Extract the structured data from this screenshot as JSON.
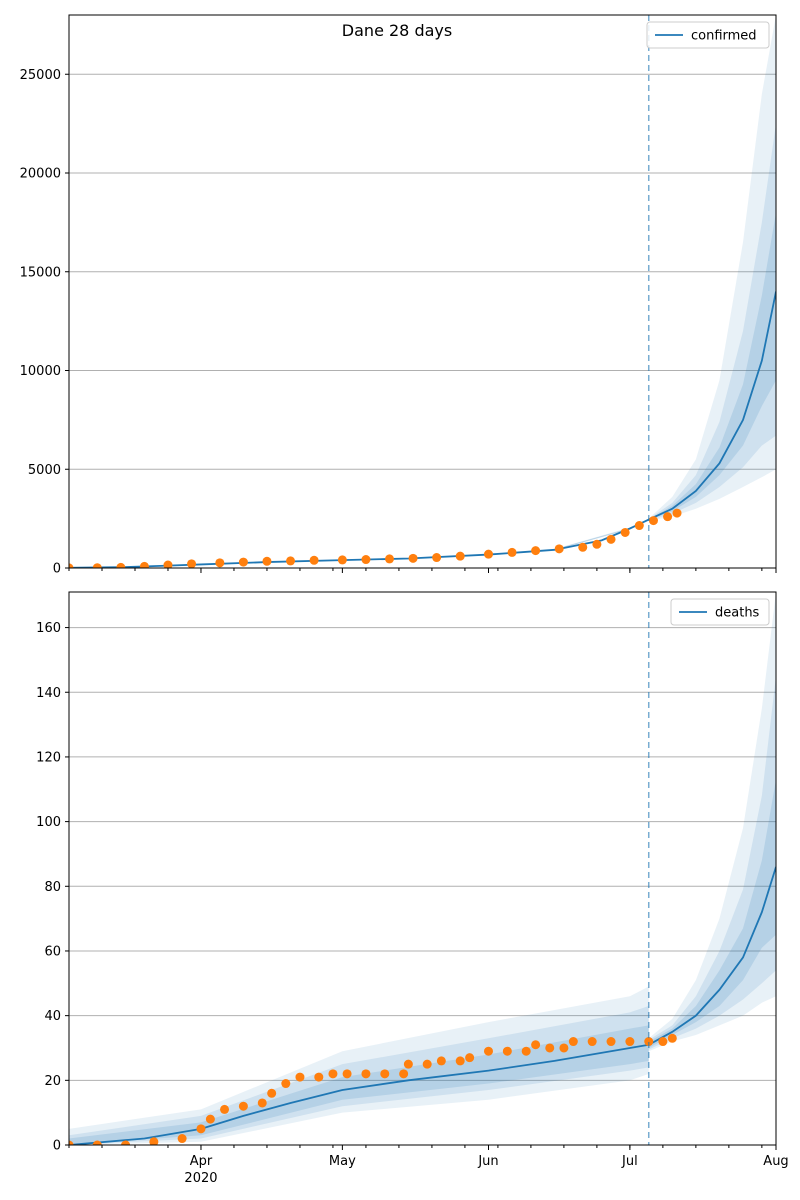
{
  "figure": {
    "title": "Dane 28 days"
  },
  "colors": {
    "model_line": "#1f77b4",
    "observed_points": "#ff7f0e",
    "band": "#1f77b4",
    "grid": "#b0b0b0",
    "axes": "#000000"
  },
  "chart_data": [
    {
      "type": "line",
      "name": "confirmed-panel",
      "title": "",
      "xlabel": "",
      "ylabel": "",
      "x_range": [
        "2020-03-04",
        "2020-08-01"
      ],
      "ylim": [
        0,
        28000
      ],
      "y_ticks": [
        0,
        5000,
        10000,
        15000,
        20000,
        25000
      ],
      "x_ticks": [
        {
          "date": "2020-04-01",
          "label": "Apr",
          "sub": "2020"
        },
        {
          "date": "2020-05-01",
          "label": "May",
          "sub": ""
        },
        {
          "date": "2020-06-01",
          "label": "Jun",
          "sub": ""
        },
        {
          "date": "2020-07-01",
          "label": "Jul",
          "sub": ""
        },
        {
          "date": "2020-08-01",
          "label": "Aug",
          "sub": ""
        }
      ],
      "grid": "horizontal",
      "legend": {
        "position": "top-right",
        "entries": [
          "confirmed"
        ]
      },
      "vline_date": "2020-07-05",
      "model": {
        "name": "confirmed",
        "points": [
          [
            "2020-03-04",
            10
          ],
          [
            "2020-03-15",
            40
          ],
          [
            "2020-03-25",
            120
          ],
          [
            "2020-04-01",
            180
          ],
          [
            "2020-04-15",
            300
          ],
          [
            "2020-05-01",
            400
          ],
          [
            "2020-05-15",
            480
          ],
          [
            "2020-06-01",
            680
          ],
          [
            "2020-06-15",
            920
          ],
          [
            "2020-06-25",
            1400
          ],
          [
            "2020-07-01",
            2000
          ],
          [
            "2020-07-05",
            2450
          ],
          [
            "2020-07-10",
            3000
          ],
          [
            "2020-07-15",
            3900
          ],
          [
            "2020-07-20",
            5300
          ],
          [
            "2020-07-25",
            7500
          ],
          [
            "2020-07-29",
            10500
          ],
          [
            "2020-08-01",
            14000
          ]
        ]
      },
      "bands": [
        {
          "opacity": 0.1,
          "points": [
            [
              "2020-06-15",
              880,
              960
            ],
            [
              "2020-07-01",
              1950,
              2050
            ],
            [
              "2020-07-05",
              2400,
              2500
            ],
            [
              "2020-07-10",
              2600,
              3600
            ],
            [
              "2020-07-15",
              3000,
              5500
            ],
            [
              "2020-07-20",
              3500,
              9500
            ],
            [
              "2020-07-25",
              4100,
              16500
            ],
            [
              "2020-07-29",
              4600,
              24000
            ],
            [
              "2020-08-01",
              5000,
              28000
            ]
          ]
        },
        {
          "opacity": 0.12,
          "points": [
            [
              "2020-06-15",
              890,
              950
            ],
            [
              "2020-07-01",
              1970,
              2030
            ],
            [
              "2020-07-05",
              2420,
              2480
            ],
            [
              "2020-07-10",
              2750,
              3300
            ],
            [
              "2020-07-15",
              3300,
              4700
            ],
            [
              "2020-07-20",
              4100,
              7400
            ],
            [
              "2020-07-25",
              5100,
              12000
            ],
            [
              "2020-07-29",
              6200,
              17500
            ],
            [
              "2020-08-01",
              6700,
              22500
            ]
          ]
        },
        {
          "opacity": 0.15,
          "points": [
            [
              "2020-06-15",
              900,
              940
            ],
            [
              "2020-07-01",
              1985,
              2015
            ],
            [
              "2020-07-05",
              2440,
              2460
            ],
            [
              "2020-07-10",
              2870,
              3150
            ],
            [
              "2020-07-15",
              3600,
              4250
            ],
            [
              "2020-07-20",
              4700,
              6100
            ],
            [
              "2020-07-25",
              6200,
              9300
            ],
            [
              "2020-07-29",
              8200,
              13800
            ],
            [
              "2020-08-01",
              9500,
              18000
            ]
          ]
        }
      ],
      "observed": {
        "name": "confirmed observed",
        "points": [
          [
            "2020-03-04",
            5
          ],
          [
            "2020-03-10",
            15
          ],
          [
            "2020-03-15",
            30
          ],
          [
            "2020-03-20",
            80
          ],
          [
            "2020-03-25",
            150
          ],
          [
            "2020-03-30",
            210
          ],
          [
            "2020-04-05",
            260
          ],
          [
            "2020-04-10",
            300
          ],
          [
            "2020-04-15",
            340
          ],
          [
            "2020-04-20",
            360
          ],
          [
            "2020-04-25",
            390
          ],
          [
            "2020-05-01",
            410
          ],
          [
            "2020-05-06",
            430
          ],
          [
            "2020-05-11",
            460
          ],
          [
            "2020-05-16",
            490
          ],
          [
            "2020-05-21",
            530
          ],
          [
            "2020-05-26",
            600
          ],
          [
            "2020-06-01",
            700
          ],
          [
            "2020-06-06",
            790
          ],
          [
            "2020-06-11",
            880
          ],
          [
            "2020-06-16",
            970
          ],
          [
            "2020-06-21",
            1050
          ],
          [
            "2020-06-24",
            1200
          ],
          [
            "2020-06-27",
            1450
          ],
          [
            "2020-06-30",
            1800
          ],
          [
            "2020-07-03",
            2150
          ],
          [
            "2020-07-06",
            2400
          ],
          [
            "2020-07-09",
            2600
          ],
          [
            "2020-07-11",
            2780
          ]
        ]
      }
    },
    {
      "type": "line",
      "name": "deaths-panel",
      "title": "",
      "xlabel": "",
      "ylabel": "",
      "x_range": [
        "2020-03-04",
        "2020-08-01"
      ],
      "ylim": [
        0,
        171
      ],
      "y_ticks": [
        0,
        20,
        40,
        60,
        80,
        100,
        120,
        140,
        160
      ],
      "x_ticks": [
        {
          "date": "2020-04-01",
          "label": "Apr",
          "sub": "2020"
        },
        {
          "date": "2020-05-01",
          "label": "May",
          "sub": ""
        },
        {
          "date": "2020-06-01",
          "label": "Jun",
          "sub": ""
        },
        {
          "date": "2020-07-01",
          "label": "Jul",
          "sub": ""
        },
        {
          "date": "2020-08-01",
          "label": "Aug",
          "sub": ""
        }
      ],
      "grid": "horizontal",
      "legend": {
        "position": "top-right",
        "entries": [
          "deaths"
        ]
      },
      "vline_date": "2020-07-05",
      "model": {
        "name": "deaths",
        "points": [
          [
            "2020-03-04",
            0
          ],
          [
            "2020-03-20",
            2
          ],
          [
            "2020-04-01",
            5
          ],
          [
            "2020-04-10",
            9
          ],
          [
            "2020-04-20",
            13
          ],
          [
            "2020-05-01",
            17
          ],
          [
            "2020-05-15",
            20
          ],
          [
            "2020-06-01",
            23
          ],
          [
            "2020-06-15",
            26
          ],
          [
            "2020-07-01",
            30
          ],
          [
            "2020-07-05",
            31
          ],
          [
            "2020-07-10",
            35
          ],
          [
            "2020-07-15",
            40
          ],
          [
            "2020-07-20",
            48
          ],
          [
            "2020-07-25",
            58
          ],
          [
            "2020-07-29",
            72
          ],
          [
            "2020-08-01",
            86
          ]
        ]
      },
      "bands": [
        {
          "opacity": 0.1,
          "points": [
            [
              "2020-03-04",
              0,
              5
            ],
            [
              "2020-04-01",
              1,
              11
            ],
            [
              "2020-05-01",
              10,
              29
            ],
            [
              "2020-06-01",
              14,
              38
            ],
            [
              "2020-07-01",
              20,
              46
            ],
            [
              "2020-07-05",
              22,
              49
            ],
            [
              "2020-07-05",
              29,
              33
            ],
            [
              "2020-07-10",
              32,
              39
            ],
            [
              "2020-07-15",
              34,
              51
            ],
            [
              "2020-07-20",
              37,
              70
            ],
            [
              "2020-07-25",
              40,
              98
            ],
            [
              "2020-07-29",
              44,
              135
            ],
            [
              "2020-08-01",
              46,
              171
            ]
          ]
        },
        {
          "opacity": 0.12,
          "points": [
            [
              "2020-03-04",
              0,
              3
            ],
            [
              "2020-04-01",
              2,
              9
            ],
            [
              "2020-05-01",
              12,
              25
            ],
            [
              "2020-06-01",
              17,
              33
            ],
            [
              "2020-07-01",
              23,
              41
            ],
            [
              "2020-07-05",
              24,
              43
            ],
            [
              "2020-07-05",
              29.5,
              32.5
            ],
            [
              "2020-07-10",
              33,
              37
            ],
            [
              "2020-07-15",
              36,
              46
            ],
            [
              "2020-07-20",
              40,
              60
            ],
            [
              "2020-07-25",
              45,
              79
            ],
            [
              "2020-07-29",
              50,
              108
            ],
            [
              "2020-08-01",
              54,
              145
            ]
          ]
        },
        {
          "opacity": 0.15,
          "points": [
            [
              "2020-03-04",
              0,
              2
            ],
            [
              "2020-04-01",
              3,
              7
            ],
            [
              "2020-05-01",
              14,
              21
            ],
            [
              "2020-06-01",
              19,
              28
            ],
            [
              "2020-07-01",
              25,
              36
            ],
            [
              "2020-07-05",
              26,
              37
            ],
            [
              "2020-07-05",
              30,
              32
            ],
            [
              "2020-07-10",
              34,
              36
            ],
            [
              "2020-07-15",
              38,
              43
            ],
            [
              "2020-07-20",
              43,
              54
            ],
            [
              "2020-07-25",
              51,
              67
            ],
            [
              "2020-07-29",
              61,
              88
            ],
            [
              "2020-08-01",
              65,
              113
            ]
          ]
        }
      ],
      "observed": {
        "name": "deaths observed",
        "points": [
          [
            "2020-03-04",
            0
          ],
          [
            "2020-03-10",
            0
          ],
          [
            "2020-03-16",
            0
          ],
          [
            "2020-03-22",
            1
          ],
          [
            "2020-03-28",
            2
          ],
          [
            "2020-04-01",
            5
          ],
          [
            "2020-04-03",
            8
          ],
          [
            "2020-04-06",
            11
          ],
          [
            "2020-04-10",
            12
          ],
          [
            "2020-04-14",
            13
          ],
          [
            "2020-04-16",
            16
          ],
          [
            "2020-04-19",
            19
          ],
          [
            "2020-04-22",
            21
          ],
          [
            "2020-04-26",
            21
          ],
          [
            "2020-04-29",
            22
          ],
          [
            "2020-05-02",
            22
          ],
          [
            "2020-05-06",
            22
          ],
          [
            "2020-05-10",
            22
          ],
          [
            "2020-05-14",
            22
          ],
          [
            "2020-05-15",
            25
          ],
          [
            "2020-05-19",
            25
          ],
          [
            "2020-05-22",
            26
          ],
          [
            "2020-05-26",
            26
          ],
          [
            "2020-05-28",
            27
          ],
          [
            "2020-06-01",
            29
          ],
          [
            "2020-06-05",
            29
          ],
          [
            "2020-06-09",
            29
          ],
          [
            "2020-06-11",
            31
          ],
          [
            "2020-06-14",
            30
          ],
          [
            "2020-06-17",
            30
          ],
          [
            "2020-06-19",
            32
          ],
          [
            "2020-06-23",
            32
          ],
          [
            "2020-06-27",
            32
          ],
          [
            "2020-07-01",
            32
          ],
          [
            "2020-07-05",
            32
          ],
          [
            "2020-07-08",
            32
          ],
          [
            "2020-07-10",
            33
          ]
        ]
      }
    }
  ]
}
